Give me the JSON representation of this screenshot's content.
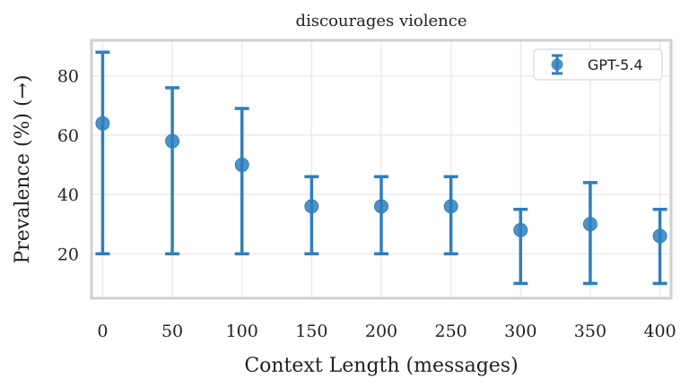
{
  "chart_data": {
    "type": "scatter",
    "title": "discourages violence",
    "xlabel": "Context Length (messages)",
    "ylabel": "Prevalence (%) (→)",
    "x_ticks": [
      0,
      50,
      100,
      150,
      200,
      250,
      300,
      350,
      400
    ],
    "y_ticks": [
      20,
      40,
      60,
      80
    ],
    "xlim": [
      -8,
      408
    ],
    "ylim": [
      5,
      92
    ],
    "grid": true,
    "legend_position": "top-right",
    "series": [
      {
        "name": "GPT-5.4",
        "color": "#2f7fbd",
        "points": [
          {
            "x": 0,
            "y": 64,
            "lo": 20,
            "hi": 88
          },
          {
            "x": 50,
            "y": 58,
            "lo": 20,
            "hi": 76
          },
          {
            "x": 100,
            "y": 50,
            "lo": 20,
            "hi": 69
          },
          {
            "x": 150,
            "y": 36,
            "lo": 20,
            "hi": 46
          },
          {
            "x": 200,
            "y": 36,
            "lo": 20,
            "hi": 46
          },
          {
            "x": 250,
            "y": 36,
            "lo": 20,
            "hi": 46
          },
          {
            "x": 300,
            "y": 28,
            "lo": 10,
            "hi": 35
          },
          {
            "x": 350,
            "y": 30,
            "lo": 10,
            "hi": 44
          },
          {
            "x": 400,
            "y": 26,
            "lo": 10,
            "hi": 35
          }
        ]
      }
    ]
  }
}
